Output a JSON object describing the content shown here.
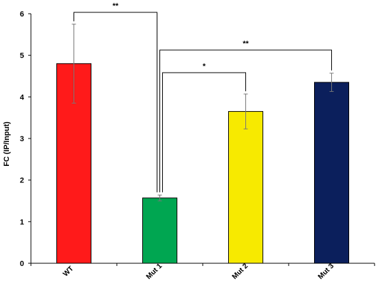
{
  "chart_data": {
    "type": "bar",
    "categories": [
      "WT",
      "Mut 1",
      "Mut 2",
      "Mut 3"
    ],
    "values": [
      4.8,
      1.57,
      3.65,
      4.35
    ],
    "errors": [
      0.95,
      0.07,
      0.42,
      0.22
    ],
    "colors": [
      "#ff1a1a",
      "#00a651",
      "#f7ea00",
      "#0b1f5c"
    ],
    "ylabel": "FC (IP/Input)",
    "ylim": [
      0,
      6
    ],
    "yticks": [
      0,
      1,
      2,
      3,
      4,
      5,
      6
    ],
    "grid": false,
    "significance": [
      {
        "from": 0,
        "to": 1,
        "label": "**"
      },
      {
        "from": 1,
        "to": 2,
        "label": "*"
      },
      {
        "from": 1,
        "to": 3,
        "label": "**"
      }
    ]
  }
}
